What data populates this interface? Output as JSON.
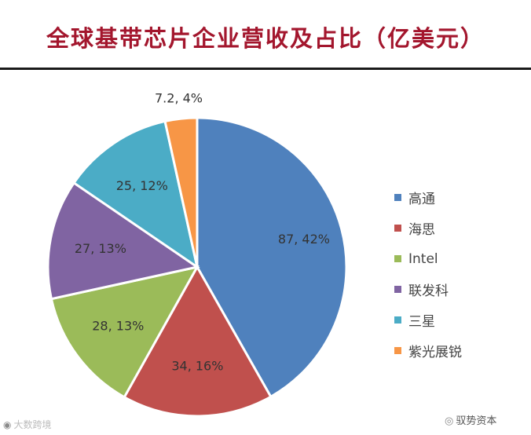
{
  "chart_data": {
    "type": "pie",
    "title": "全球基带芯片企业营收及占比（亿美元）",
    "slices": [
      {
        "label": "高通",
        "value": 87,
        "percent": 42,
        "data_label": "87, 42%",
        "color": "#4f81bd"
      },
      {
        "label": "海思",
        "value": 34,
        "percent": 16,
        "data_label": "34, 16%",
        "color": "#c0504d"
      },
      {
        "label": "Intel",
        "value": 28,
        "percent": 13,
        "data_label": "28, 13%",
        "color": "#9bbb59"
      },
      {
        "label": "联发科",
        "value": 27,
        "percent": 13,
        "data_label": "27, 13%",
        "color": "#8064a2"
      },
      {
        "label": "三星",
        "value": 25,
        "percent": 12,
        "data_label": "25, 12%",
        "color": "#4bacc6"
      },
      {
        "label": "紫光展锐",
        "value": 7.2,
        "percent": 4,
        "data_label": "7.2, 4%",
        "color": "#f79646"
      }
    ],
    "legend_position": "right"
  },
  "watermarks": {
    "left": "大数跨境",
    "right": "驭势资本",
    "left_icon": "weibo-icon",
    "right_icon": "wechat-icon"
  }
}
